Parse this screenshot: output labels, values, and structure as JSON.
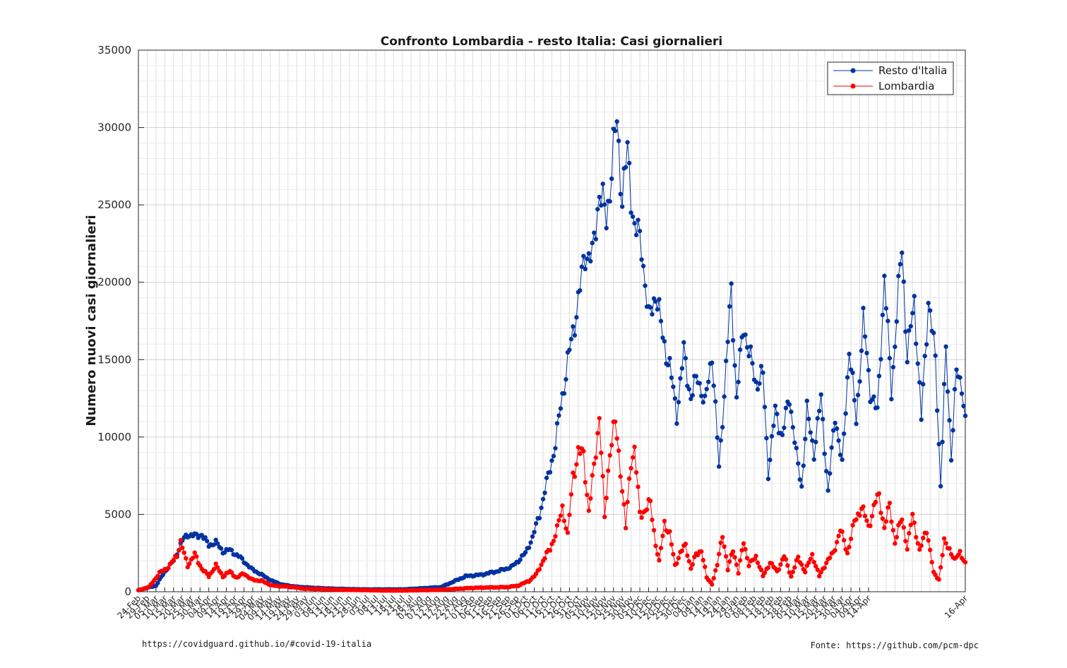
{
  "chart_data": {
    "type": "line",
    "title": "Confronto Lombardia - resto Italia: Casi giornalieri",
    "ylabel": "Numero nuovi casi giornalieri",
    "xlabel": "",
    "ylim": [
      0,
      35000
    ],
    "yticks": [
      0,
      5000,
      10000,
      15000,
      20000,
      25000,
      30000,
      35000
    ],
    "grid": true,
    "legend_position": "top-right",
    "x_start": "2020-02-24",
    "x_end": "2021-04-16",
    "x_ticks": [
      "24-Feb",
      "29-Feb",
      "05-Mar",
      "10-Mar",
      "15-Mar",
      "20-Mar",
      "25-Mar",
      "30-Mar",
      "04-Apr",
      "09-Apr",
      "14-Apr",
      "19-Apr",
      "24-Apr",
      "29-Apr",
      "04-May",
      "09-May",
      "14-May",
      "19-May",
      "24-May",
      "29-May",
      "03-Jun",
      "08-Jun",
      "13-Jun",
      "18-Jun",
      "23-Jun",
      "28-Jun",
      "03-Jul",
      "08-Jul",
      "13-Jul",
      "18-Jul",
      "23-Jul",
      "28-Jul",
      "02-Aug",
      "07-Aug",
      "12-Aug",
      "17-Aug",
      "22-Aug",
      "27-Aug",
      "01-Sep",
      "06-Sep",
      "11-Sep",
      "16-Sep",
      "21-Sep",
      "26-Sep",
      "01-Oct",
      "06-Oct",
      "11-Oct",
      "16-Oct",
      "21-Oct",
      "26-Oct",
      "31-Oct",
      "05-Nov",
      "10-Nov",
      "15-Nov",
      "20-Nov",
      "25-Nov",
      "30-Nov",
      "05-Dec",
      "10-Dec",
      "15-Dec",
      "20-Dec",
      "25-Dec",
      "30-Dec",
      "04-Jan",
      "09-Jan",
      "14-Jan",
      "19-Jan",
      "24-Jan",
      "29-Jan",
      "03-Feb",
      "08-Feb",
      "13-Feb",
      "18-Feb",
      "23-Feb",
      "28-Feb",
      "05-Mar",
      "10-Mar",
      "15-Mar",
      "20-Mar",
      "25-Mar",
      "30-Mar",
      "04-Apr",
      "09-Apr",
      "14-Apr",
      "16-Apr"
    ],
    "series": [
      {
        "name": "Resto d'Italia",
        "color": "#0033a0",
        "keypoints": [
          [
            0,
            100
          ],
          [
            10,
            400
          ],
          [
            15,
            1300
          ],
          [
            20,
            2000
          ],
          [
            25,
            3300
          ],
          [
            28,
            3700
          ],
          [
            33,
            3600
          ],
          [
            36,
            3700
          ],
          [
            40,
            3000
          ],
          [
            44,
            3200
          ],
          [
            48,
            2600
          ],
          [
            52,
            2700
          ],
          [
            58,
            2200
          ],
          [
            64,
            1500
          ],
          [
            70,
            1100
          ],
          [
            76,
            700
          ],
          [
            82,
            450
          ],
          [
            90,
            320
          ],
          [
            100,
            250
          ],
          [
            110,
            200
          ],
          [
            120,
            170
          ],
          [
            130,
            150
          ],
          [
            140,
            150
          ],
          [
            150,
            150
          ],
          [
            158,
            200
          ],
          [
            165,
            250
          ],
          [
            172,
            300
          ],
          [
            180,
            700
          ],
          [
            186,
            1000
          ],
          [
            195,
            1100
          ],
          [
            205,
            1350
          ],
          [
            212,
            1600
          ],
          [
            216,
            2000
          ],
          [
            220,
            2500
          ],
          [
            224,
            3500
          ],
          [
            228,
            5000
          ],
          [
            233,
            7500
          ],
          [
            237,
            9500
          ],
          [
            240,
            12000
          ],
          [
            244,
            14800
          ],
          [
            248,
            17500
          ],
          [
            251,
            19500
          ],
          [
            254,
            22000
          ],
          [
            258,
            21500
          ],
          [
            262,
            26000
          ],
          [
            266,
            24000
          ],
          [
            270,
            28500
          ],
          [
            272,
            30300
          ],
          [
            275,
            25500
          ],
          [
            278,
            28300
          ],
          [
            282,
            23500
          ],
          [
            286,
            22500
          ],
          [
            290,
            17500
          ],
          [
            294,
            19400
          ],
          [
            298,
            16500
          ],
          [
            302,
            14500
          ],
          [
            306,
            11500
          ],
          [
            310,
            15500
          ],
          [
            314,
            12500
          ],
          [
            318,
            14000
          ],
          [
            322,
            12000
          ],
          [
            326,
            15500
          ],
          [
            330,
            8000
          ],
          [
            334,
            14500
          ],
          [
            337,
            19500
          ],
          [
            340,
            12500
          ],
          [
            344,
            17300
          ],
          [
            347,
            15500
          ],
          [
            351,
            13500
          ],
          [
            355,
            14000
          ],
          [
            358,
            7700
          ],
          [
            362,
            11700
          ],
          [
            366,
            10000
          ],
          [
            370,
            12700
          ],
          [
            374,
            8800
          ],
          [
            377,
            6800
          ],
          [
            380,
            11700
          ],
          [
            384,
            9000
          ],
          [
            388,
            12500
          ],
          [
            392,
            6400
          ],
          [
            396,
            11500
          ],
          [
            400,
            8100
          ],
          [
            404,
            15800
          ],
          [
            408,
            11000
          ],
          [
            412,
            17500
          ],
          [
            416,
            13000
          ],
          [
            420,
            11500
          ],
          [
            424,
            20300
          ],
          [
            428,
            13000
          ],
          [
            432,
            19300
          ],
          [
            434,
            22400
          ],
          [
            437,
            15100
          ],
          [
            441,
            18900
          ],
          [
            445,
            11100
          ],
          [
            449,
            18900
          ],
          [
            453,
            15000
          ],
          [
            456,
            6900
          ],
          [
            459,
            15600
          ],
          [
            462,
            8800
          ],
          [
            465,
            14200
          ],
          [
            468,
            13500
          ],
          [
            470,
            10900
          ]
        ]
      },
      {
        "name": "Lombardia",
        "color": "#ff0000",
        "keypoints": [
          [
            0,
            100
          ],
          [
            6,
            300
          ],
          [
            12,
            1200
          ],
          [
            18,
            1700
          ],
          [
            22,
            2400
          ],
          [
            24,
            3200
          ],
          [
            28,
            1700
          ],
          [
            32,
            2400
          ],
          [
            36,
            1500
          ],
          [
            40,
            1000
          ],
          [
            44,
            1700
          ],
          [
            48,
            1000
          ],
          [
            52,
            1300
          ],
          [
            56,
            900
          ],
          [
            60,
            1200
          ],
          [
            64,
            800
          ],
          [
            70,
            700
          ],
          [
            76,
            400
          ],
          [
            82,
            350
          ],
          [
            88,
            300
          ],
          [
            94,
            200
          ],
          [
            100,
            180
          ],
          [
            110,
            150
          ],
          [
            120,
            120
          ],
          [
            130,
            100
          ],
          [
            140,
            80
          ],
          [
            150,
            80
          ],
          [
            160,
            100
          ],
          [
            170,
            120
          ],
          [
            180,
            180
          ],
          [
            190,
            250
          ],
          [
            200,
            280
          ],
          [
            210,
            300
          ],
          [
            216,
            400
          ],
          [
            222,
            700
          ],
          [
            226,
            1100
          ],
          [
            230,
            2000
          ],
          [
            234,
            2800
          ],
          [
            238,
            4000
          ],
          [
            241,
            5500
          ],
          [
            244,
            3600
          ],
          [
            247,
            7500
          ],
          [
            250,
            9000
          ],
          [
            253,
            8800
          ],
          [
            256,
            5200
          ],
          [
            259,
            8000
          ],
          [
            262,
            11500
          ],
          [
            265,
            4700
          ],
          [
            268,
            9300
          ],
          [
            271,
            10800
          ],
          [
            274,
            8000
          ],
          [
            277,
            4100
          ],
          [
            280,
            8600
          ],
          [
            282,
            9200
          ],
          [
            285,
            5000
          ],
          [
            288,
            5300
          ],
          [
            291,
            5700
          ],
          [
            294,
            3100
          ],
          [
            296,
            1900
          ],
          [
            299,
            4500
          ],
          [
            302,
            3700
          ],
          [
            305,
            1700
          ],
          [
            308,
            2500
          ],
          [
            311,
            3000
          ],
          [
            314,
            1500
          ],
          [
            317,
            2400
          ],
          [
            320,
            2700
          ],
          [
            323,
            900
          ],
          [
            326,
            500
          ],
          [
            329,
            1700
          ],
          [
            332,
            3800
          ],
          [
            335,
            1400
          ],
          [
            338,
            2800
          ],
          [
            341,
            1200
          ],
          [
            344,
            3300
          ],
          [
            347,
            1700
          ],
          [
            351,
            2300
          ],
          [
            355,
            1000
          ],
          [
            359,
            1900
          ],
          [
            363,
            1300
          ],
          [
            367,
            2300
          ],
          [
            371,
            1000
          ],
          [
            375,
            2200
          ],
          [
            379,
            1300
          ],
          [
            383,
            2400
          ],
          [
            387,
            1000
          ],
          [
            391,
            1900
          ],
          [
            395,
            2500
          ],
          [
            399,
            4000
          ],
          [
            403,
            2500
          ],
          [
            407,
            4500
          ],
          [
            411,
            5500
          ],
          [
            415,
            4200
          ],
          [
            419,
            5800
          ],
          [
            421,
            6200
          ],
          [
            424,
            4100
          ],
          [
            427,
            5600
          ],
          [
            430,
            3200
          ],
          [
            434,
            4800
          ],
          [
            437,
            2800
          ],
          [
            440,
            5000
          ],
          [
            444,
            2600
          ],
          [
            448,
            4100
          ],
          [
            452,
            1200
          ],
          [
            455,
            800
          ],
          [
            458,
            3200
          ],
          [
            461,
            2800
          ],
          [
            464,
            2000
          ],
          [
            467,
            2600
          ],
          [
            470,
            1800
          ]
        ]
      }
    ]
  },
  "footer": {
    "left": "https://covidguard.github.io/#covid-19-italia",
    "right": "Fonte: https://github.com/pcm-dpc"
  }
}
